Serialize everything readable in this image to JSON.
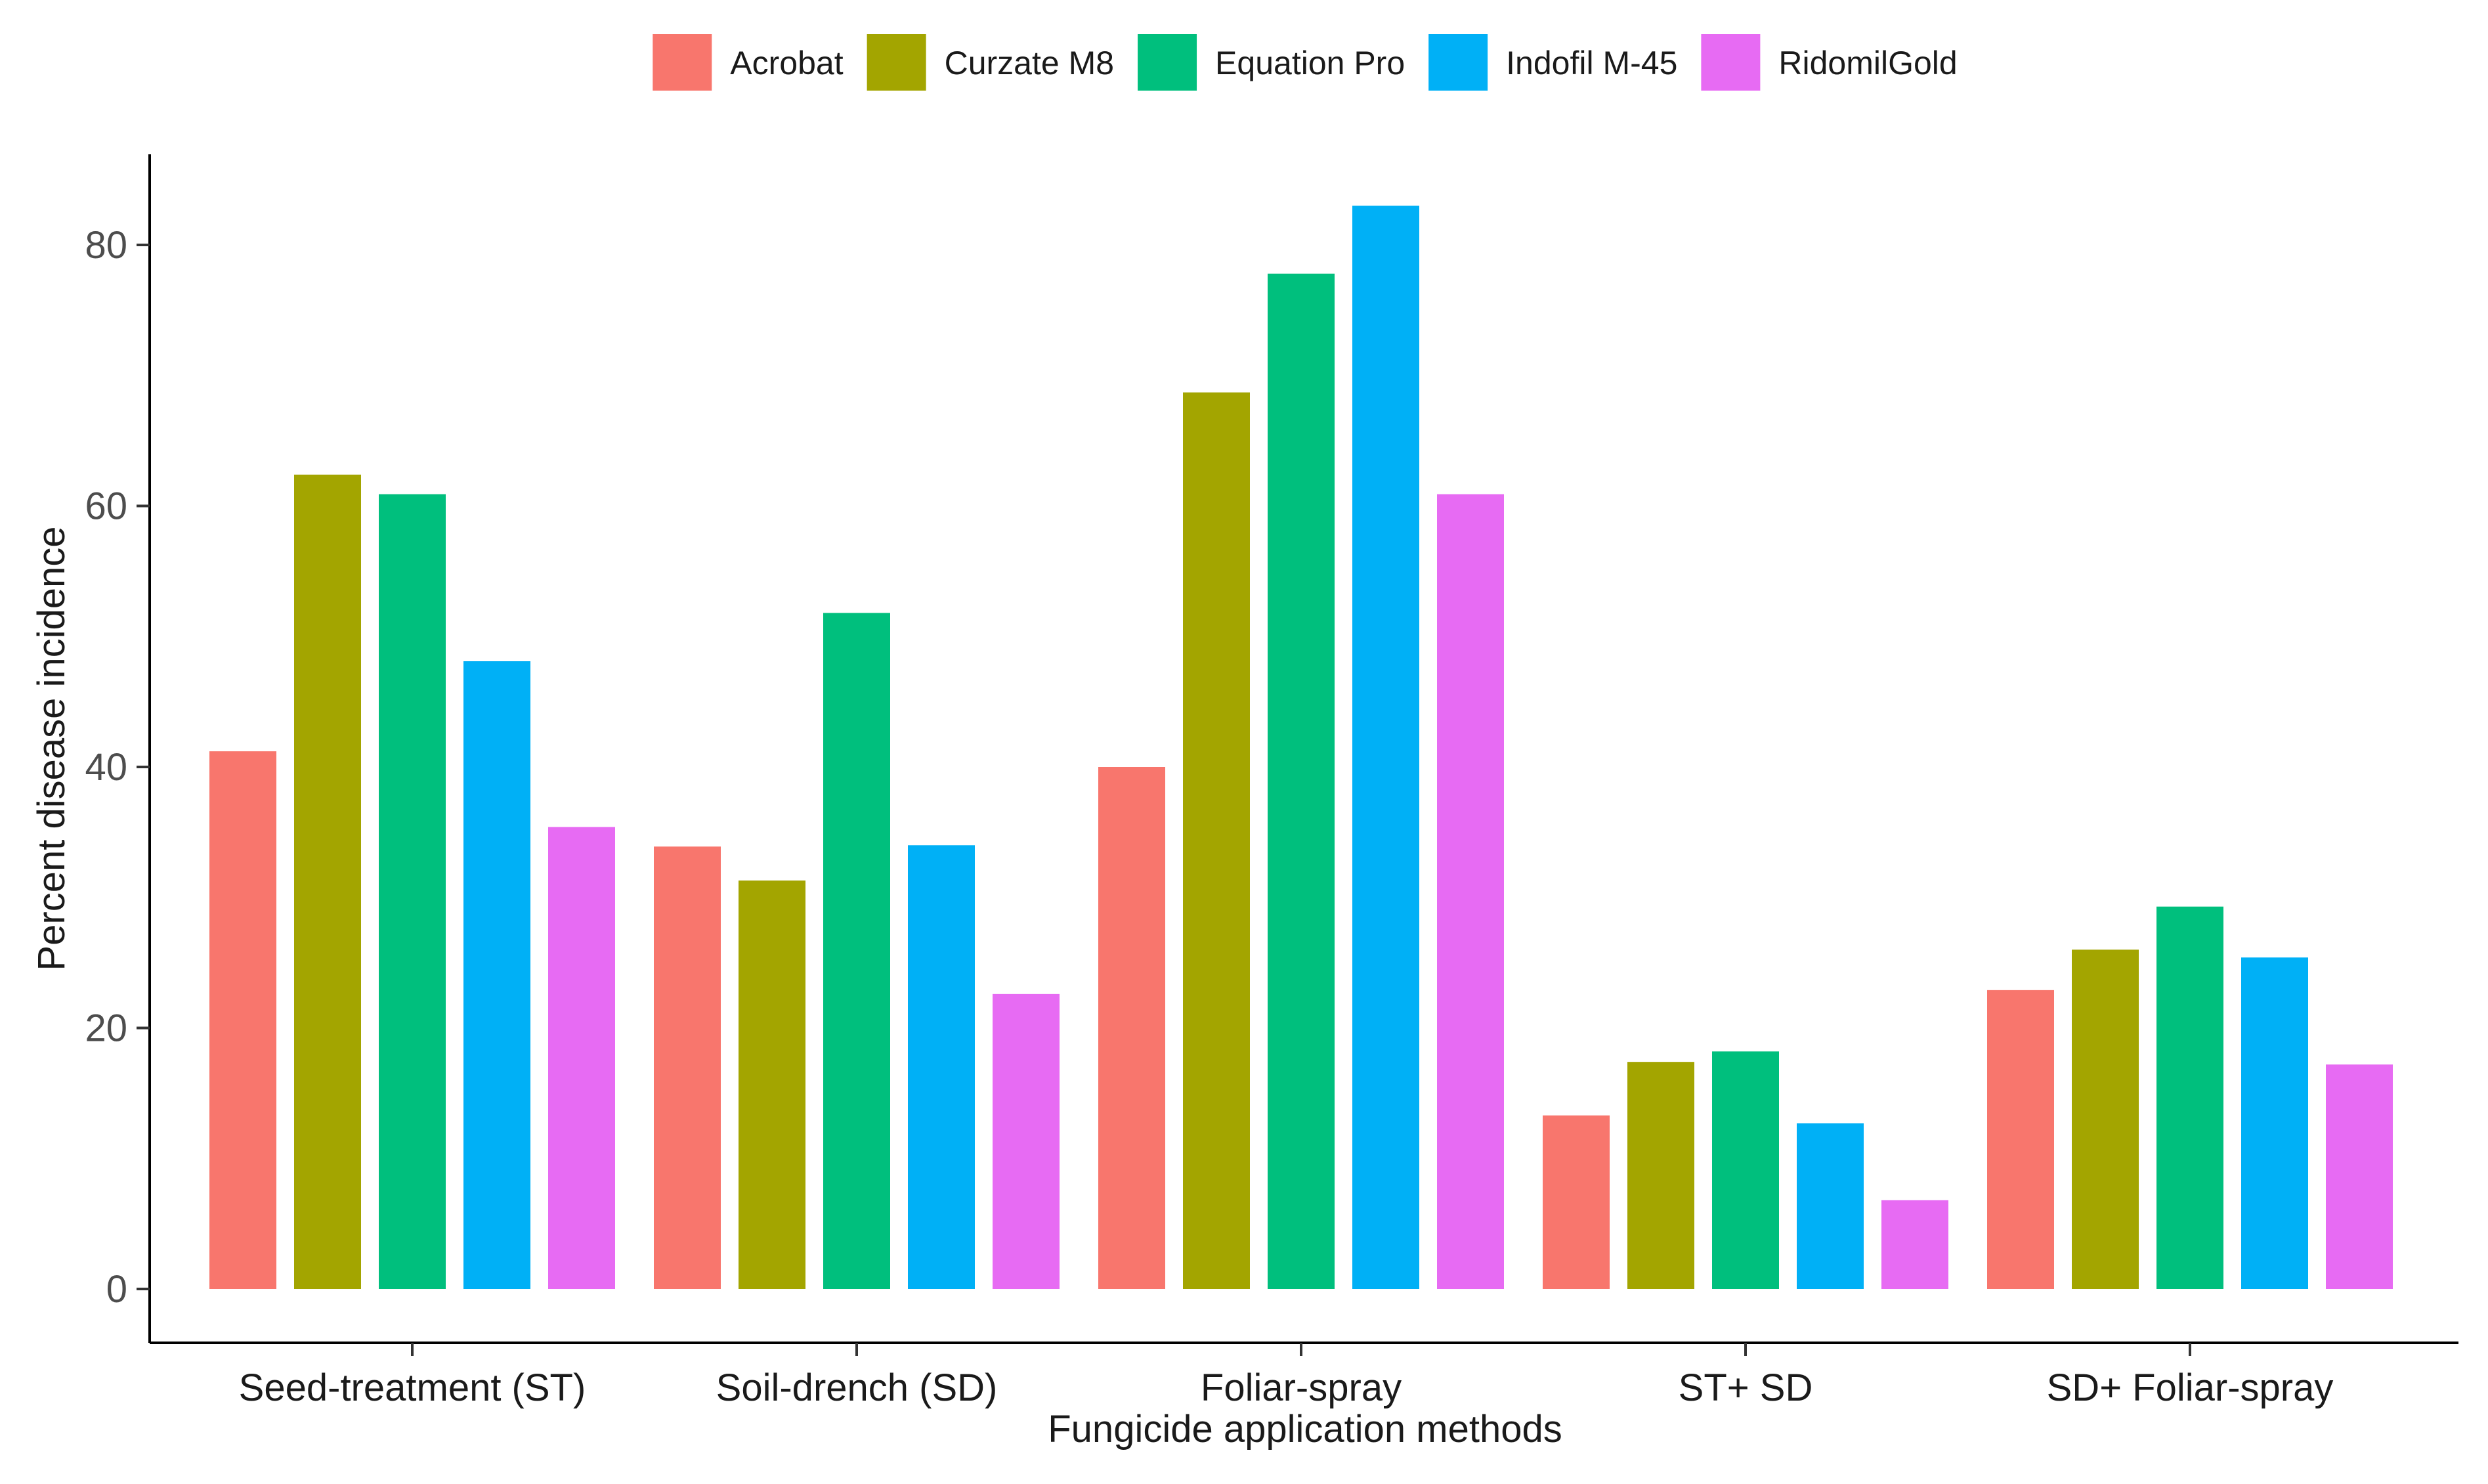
{
  "chart_data": {
    "type": "bar",
    "title": "",
    "xlabel": "Fungicide application methods",
    "ylabel": "Percent disease incidence",
    "ylim": [
      0,
      87
    ],
    "yticks": [
      0,
      20,
      40,
      60,
      80
    ],
    "legend_position": "top",
    "categories": [
      "Seed-treatment (ST)",
      "Soil-drench (SD)",
      "Foliar-spray",
      "ST+ SD",
      "SD+ Foliar-spray"
    ],
    "series": [
      {
        "name": "Acrobat",
        "color": "#F8766D",
        "values": [
          41.2,
          33.9,
          40.0,
          13.3,
          22.9
        ]
      },
      {
        "name": "Curzate M8",
        "color": "#A3A500",
        "values": [
          62.4,
          31.3,
          68.7,
          17.4,
          26.0
        ]
      },
      {
        "name": "Equation Pro",
        "color": "#00BF7D",
        "values": [
          60.9,
          51.8,
          77.8,
          18.2,
          29.3
        ]
      },
      {
        "name": "Indofil M-45",
        "color": "#00B0F6",
        "values": [
          48.1,
          34.0,
          83.0,
          12.7,
          25.4
        ]
      },
      {
        "name": "RidomilGold",
        "color": "#E76BF3",
        "values": [
          35.4,
          22.6,
          60.9,
          6.8,
          17.2
        ]
      }
    ]
  }
}
